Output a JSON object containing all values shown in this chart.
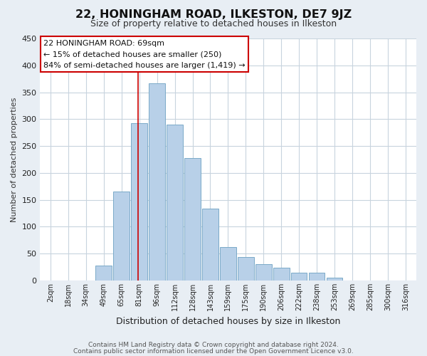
{
  "title": "22, HONINGHAM ROAD, ILKESTON, DE7 9JZ",
  "subtitle": "Size of property relative to detached houses in Ilkeston",
  "xlabel": "Distribution of detached houses by size in Ilkeston",
  "ylabel": "Number of detached properties",
  "bar_labels": [
    "2sqm",
    "18sqm",
    "34sqm",
    "49sqm",
    "65sqm",
    "81sqm",
    "96sqm",
    "112sqm",
    "128sqm",
    "143sqm",
    "159sqm",
    "175sqm",
    "190sqm",
    "206sqm",
    "222sqm",
    "238sqm",
    "253sqm",
    "269sqm",
    "285sqm",
    "300sqm",
    "316sqm"
  ],
  "bar_values": [
    0,
    0,
    0,
    28,
    165,
    293,
    367,
    290,
    228,
    133,
    62,
    43,
    30,
    24,
    14,
    15,
    5,
    0,
    0,
    0,
    0
  ],
  "bar_color": "#b8d0e8",
  "bar_edge_color": "#7aaac8",
  "reference_line_x": 4.92,
  "reference_line_color": "#cc0000",
  "ylim": [
    0,
    450
  ],
  "yticks": [
    0,
    50,
    100,
    150,
    200,
    250,
    300,
    350,
    400,
    450
  ],
  "annotation_title": "22 HONINGHAM ROAD: 69sqm",
  "annotation_line1": "← 15% of detached houses are smaller (250)",
  "annotation_line2": "84% of semi-detached houses are larger (1,419) →",
  "footer_line1": "Contains HM Land Registry data © Crown copyright and database right 2024.",
  "footer_line2": "Contains public sector information licensed under the Open Government Licence v3.0.",
  "bg_color": "#e8eef4",
  "plot_bg_color": "#ffffff",
  "grid_color": "#c8d4de"
}
